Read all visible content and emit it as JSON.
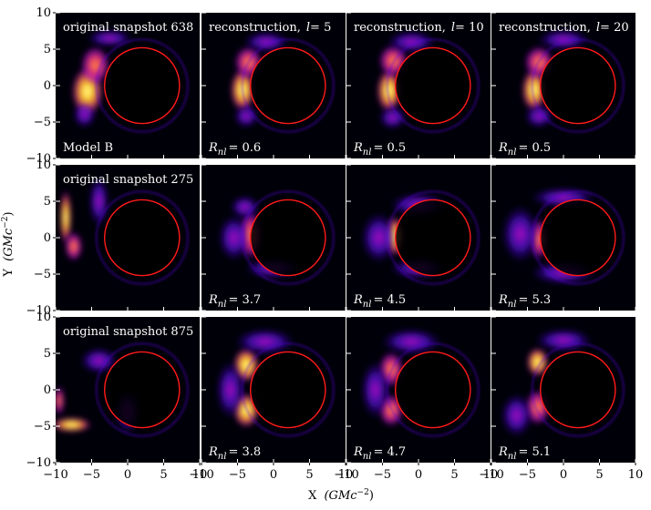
{
  "figure": {
    "x_axis_title": "X",
    "x_axis_units": "(GMc",
    "y_axis_title": "Y",
    "y_axis_units": "(GMc",
    "units_exponent": "−2",
    "units_close": ")",
    "ring_color": "#ff1a1a",
    "background_color": "#000008",
    "colormap": [
      "#000000",
      "#1a0080",
      "#5a10e8",
      "#c010d0",
      "#ff3a70",
      "#ff9a30",
      "#ffe040",
      "#ffffa0"
    ]
  },
  "chart_data": {
    "type": "image_grid",
    "xlim": [
      -10,
      10
    ],
    "ylim": [
      -10,
      10
    ],
    "x_ticks": [
      "−10",
      "−5",
      "0",
      "5",
      "10"
    ],
    "y_ticks": [
      "10",
      "5",
      "0",
      "−5",
      "−10"
    ],
    "ring": {
      "center_x": 2,
      "center_y": 0,
      "radius": 5.2
    },
    "rows": [
      {
        "panels": [
          {
            "title": "original snapshot 638",
            "note": "Model B"
          },
          {
            "title": "reconstruction,",
            "l_symbol": "l",
            "l_value": "= 5",
            "rnl_label": "R",
            "rnl_sub": "nl",
            "rnl_value": "= 0.6"
          },
          {
            "title": "reconstruction,",
            "l_symbol": "l",
            "l_value": "= 10",
            "rnl_label": "R",
            "rnl_sub": "nl",
            "rnl_value": "= 0.5"
          },
          {
            "title": "reconstruction,",
            "l_symbol": "l",
            "l_value": "= 20",
            "rnl_label": "R",
            "rnl_sub": "nl",
            "rnl_value": "= 0.5"
          }
        ]
      },
      {
        "panels": [
          {
            "title": "original snapshot 275"
          },
          {
            "rnl_label": "R",
            "rnl_sub": "nl",
            "rnl_value": "= 3.7"
          },
          {
            "rnl_label": "R",
            "rnl_sub": "nl",
            "rnl_value": "= 4.5"
          },
          {
            "rnl_label": "R",
            "rnl_sub": "nl",
            "rnl_value": "= 5.3"
          }
        ]
      },
      {
        "panels": [
          {
            "title": "original snapshot 875"
          },
          {
            "rnl_label": "R",
            "rnl_sub": "nl",
            "rnl_value": "= 3.8"
          },
          {
            "rnl_label": "R",
            "rnl_sub": "nl",
            "rnl_value": "= 4.7"
          },
          {
            "rnl_label": "R",
            "rnl_sub": "nl",
            "rnl_value": "= 5.1"
          }
        ]
      }
    ]
  }
}
